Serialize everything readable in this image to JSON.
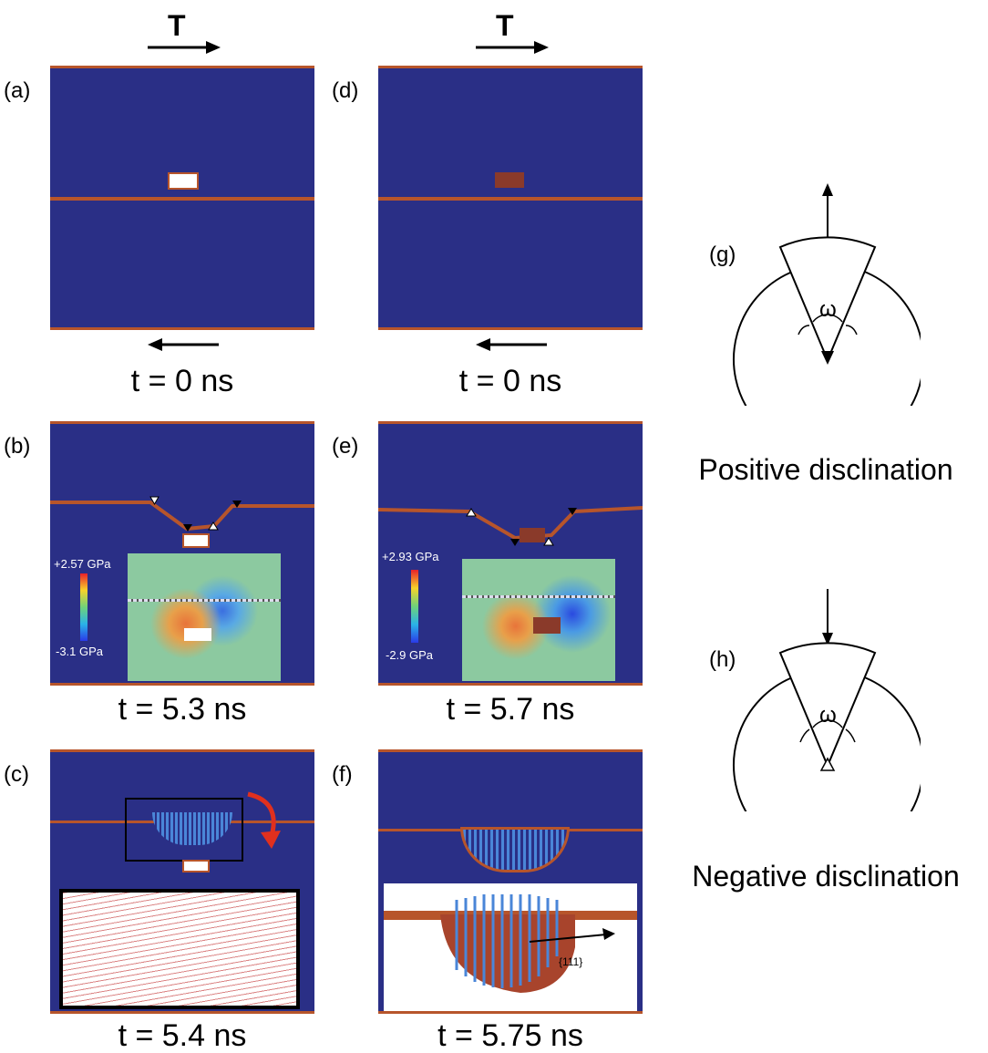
{
  "shear_label": "T",
  "panels": {
    "a": {
      "label": "(a)",
      "time": "t = 0 ns"
    },
    "b": {
      "label": "(b)",
      "time": "t = 5.3 ns",
      "scale_max": "+2.57 GPa",
      "scale_min": "-3.1 GPa"
    },
    "c": {
      "label": "(c)",
      "time": "t = 5.4 ns"
    },
    "d": {
      "label": "(d)",
      "time": "t = 0 ns"
    },
    "e": {
      "label": "(e)",
      "time": "t = 5.7 ns",
      "scale_max": "+2.93 GPa",
      "scale_min": "-2.9 GPa"
    },
    "f": {
      "label": "(f)",
      "time": "t = 5.75 ns",
      "plane_label": "{111}"
    },
    "g": {
      "label": "(g)",
      "angle": "ω",
      "caption": "Positive disclination"
    },
    "h": {
      "label": "(h)",
      "angle": "ω",
      "caption": "Negative disclination"
    }
  },
  "colors": {
    "matrix": "#2a2f86",
    "boundary": "#b7552b",
    "twin_blue": "#4a86d8",
    "red_arrow": "#e0301e"
  }
}
